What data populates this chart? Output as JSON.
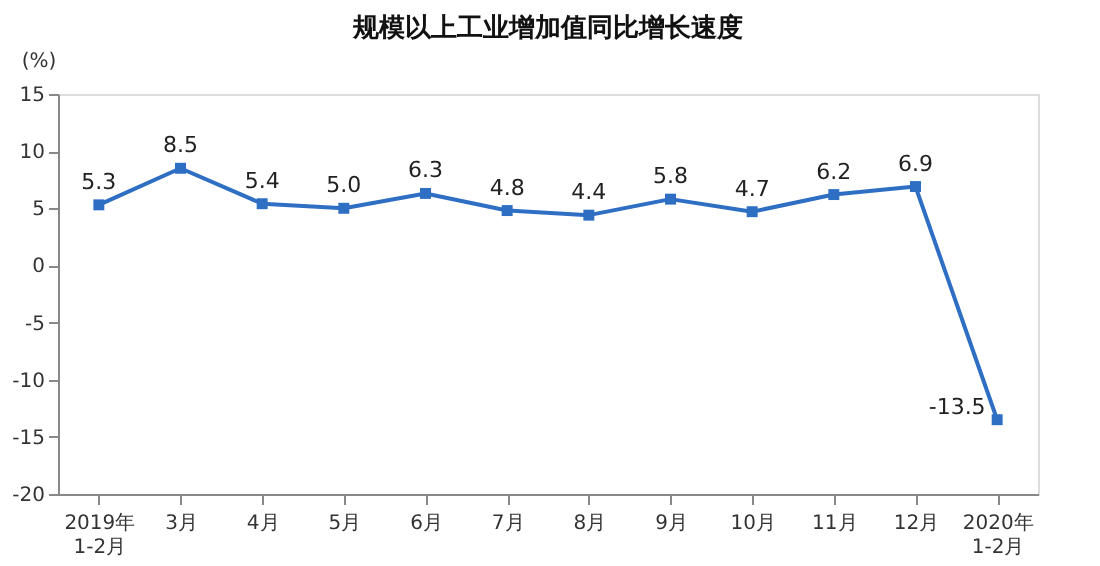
{
  "chart_data": {
    "type": "line",
    "title": "规模以上工业增加值同比增长速度",
    "ylabel": "(%)",
    "categories": [
      "2019年\n1-2月",
      "3月",
      "4月",
      "5月",
      "6月",
      "7月",
      "8月",
      "9月",
      "10月",
      "11月",
      "12月",
      "2020年\n1-2月"
    ],
    "series": [
      {
        "color": "#2e6fc4",
        "values": [
          5.3,
          8.5,
          5.4,
          5.0,
          6.3,
          4.8,
          4.4,
          5.8,
          4.7,
          6.2,
          6.9,
          -13.5
        ]
      }
    ],
    "value_labels": [
      "5.3",
      "8.5",
      "5.4",
      "5.0",
      "6.3",
      "4.8",
      "4.4",
      "5.8",
      "4.7",
      "6.2",
      "6.9",
      "-13.5"
    ],
    "ylim": [
      -20,
      15
    ],
    "yticks": [
      -20,
      -15,
      -10,
      -5,
      0,
      5,
      10,
      15
    ],
    "grid": false,
    "marker": "square",
    "line_style": "solid"
  }
}
